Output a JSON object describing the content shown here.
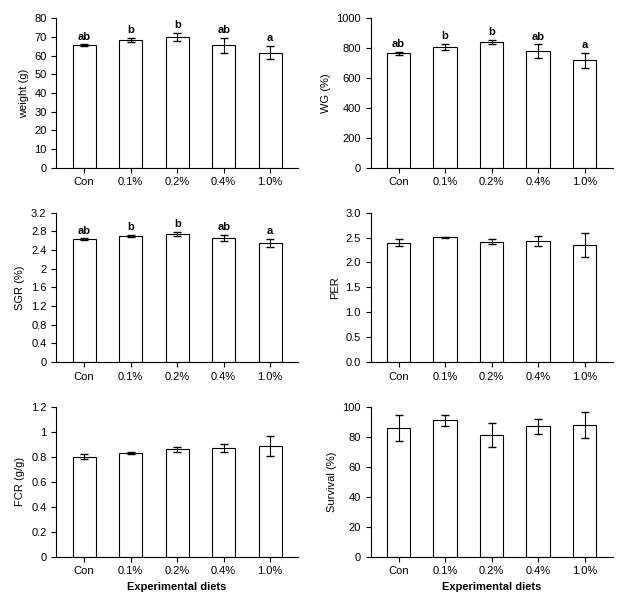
{
  "chart_data": [
    {
      "type": "bar",
      "ylabel": "weight (g)",
      "categories": [
        "Con",
        "0.1%",
        "0.2%",
        "0.4%",
        "1.0%"
      ],
      "values": [
        65.5,
        68.5,
        70,
        65.5,
        61.5
      ],
      "errors": [
        0.5,
        1,
        2,
        4,
        3.5
      ],
      "annotations": [
        "ab",
        "b",
        "b",
        "ab",
        "a"
      ],
      "color": "#ffffff",
      "ylim": [
        0,
        80
      ],
      "yticks": [
        0,
        10,
        20,
        30,
        40,
        50,
        60,
        70,
        80
      ]
    },
    {
      "type": "bar",
      "ylabel": "WG (%)",
      "categories": [
        "Con",
        "0.1%",
        "0.2%",
        "0.4%",
        "1.0%"
      ],
      "values": [
        765,
        810,
        840,
        780,
        720
      ],
      "errors": [
        10,
        20,
        15,
        45,
        50
      ],
      "annotations": [
        "ab",
        "b",
        "b",
        "ab",
        "a"
      ],
      "color": "#ffffff",
      "ylim": [
        0,
        1000
      ],
      "yticks": [
        0,
        200,
        400,
        600,
        800,
        1000
      ]
    },
    {
      "type": "bar",
      "ylabel": "SGR (%)",
      "categories": [
        "Con",
        "0.1%",
        "0.2%",
        "0.4%",
        "1.0%"
      ],
      "values": [
        2.63,
        2.7,
        2.74,
        2.66,
        2.55
      ],
      "errors": [
        0.02,
        0.03,
        0.04,
        0.07,
        0.09
      ],
      "annotations": [
        "ab",
        "b",
        "b",
        "ab",
        "a"
      ],
      "color": "#ffffff",
      "ylim": [
        0,
        3.2
      ],
      "yticks": [
        0,
        0.4,
        0.8,
        1.2,
        1.6,
        2,
        2.4,
        2.8,
        3.2
      ]
    },
    {
      "type": "bar",
      "ylabel": "PER",
      "categories": [
        "Con",
        "0.1%",
        "0.2%",
        "0.4%",
        "1.0%"
      ],
      "values": [
        2.4,
        2.51,
        2.42,
        2.43,
        2.35
      ],
      "errors": [
        0.08,
        0.01,
        0.05,
        0.1,
        0.25
      ],
      "color": "#ffffff",
      "ylim": [
        0,
        3.0
      ],
      "yticks": [
        {
          "value": 0,
          "label": "0.0"
        },
        {
          "value": 0.5,
          "label": "0.5"
        },
        {
          "value": 1,
          "label": "1.0"
        },
        {
          "value": 1.5,
          "label": "1.5"
        },
        {
          "value": 2,
          "label": "2.0"
        },
        {
          "value": 2.5,
          "label": "2.5"
        },
        {
          "value": 3,
          "label": "3.0"
        }
      ]
    },
    {
      "type": "bar",
      "ylabel": "FCR (g/g)",
      "xlabel": "Experimental diets",
      "categories": [
        "Con",
        "0.1%",
        "0.2%",
        "0.4%",
        "1.0%"
      ],
      "values": [
        0.8,
        0.83,
        0.86,
        0.87,
        0.89
      ],
      "errors": [
        0.02,
        0.01,
        0.02,
        0.03,
        0.08
      ],
      "color": "#ffffff",
      "ylim": [
        0,
        1.2
      ],
      "yticks": [
        0,
        0.2,
        0.4,
        0.6,
        0.8,
        1,
        1.2
      ]
    },
    {
      "type": "bar",
      "ylabel": "Survival (%)",
      "xlabel": "Experimental diets",
      "categories": [
        "Con",
        "0.1%",
        "0.2%",
        "0.4%",
        "1.0%"
      ],
      "values": [
        86,
        91,
        81,
        87,
        88
      ],
      "errors": [
        9,
        4,
        8,
        5,
        9
      ],
      "color": "#ffffff",
      "ylim": [
        0,
        100
      ],
      "yticks": [
        0,
        20,
        40,
        60,
        80,
        100
      ]
    }
  ]
}
